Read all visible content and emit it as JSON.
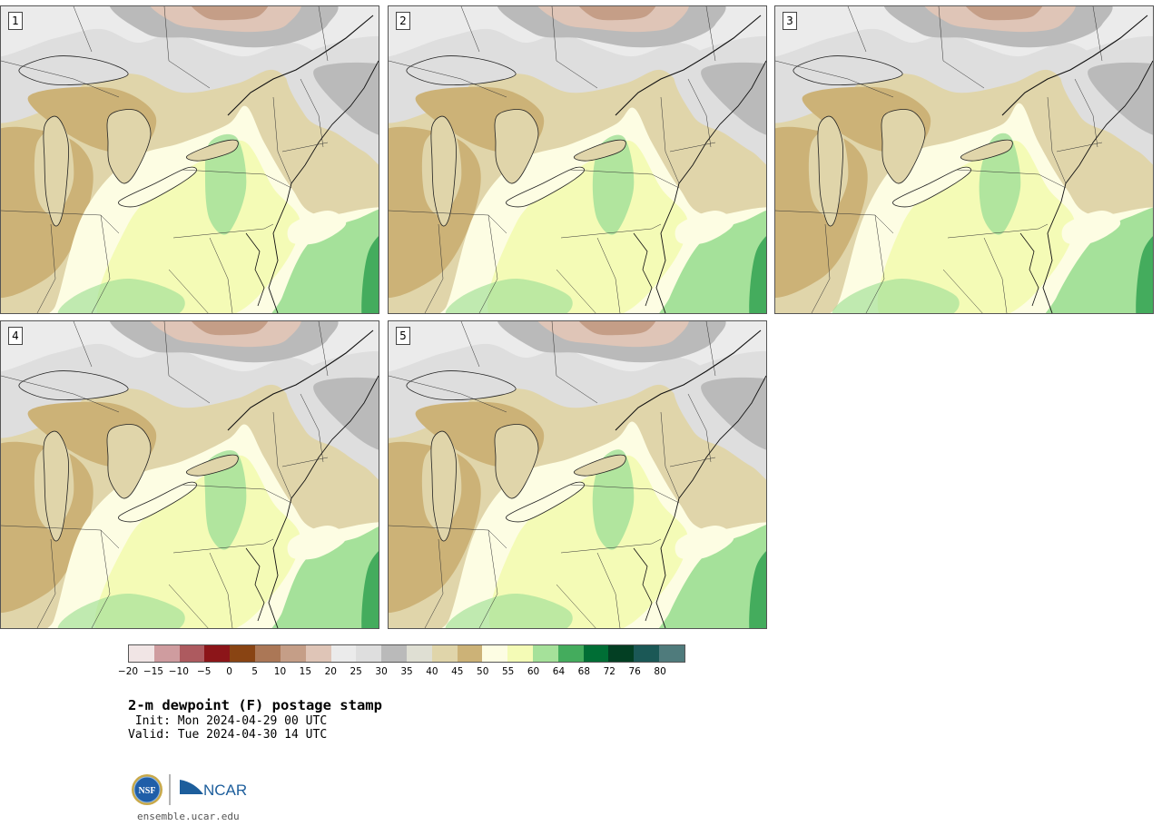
{
  "panels": [
    {
      "label": "1",
      "variant": 0
    },
    {
      "label": "2",
      "variant": 1
    },
    {
      "label": "3",
      "variant": 2
    },
    {
      "label": "4",
      "variant": 3
    },
    {
      "label": "5",
      "variant": 4
    }
  ],
  "colorbar": {
    "colors": [
      "#f1e5e5",
      "#cf9c9f",
      "#ad5a5f",
      "#8c1519",
      "#894413",
      "#ab7756",
      "#c59e87",
      "#dfc5b7",
      "#ebebeb",
      "#dedede",
      "#bababa",
      "#dfdfd3",
      "#e0d5aa",
      "#ccb277",
      "#fdfde3",
      "#f4fbb6",
      "#a5e19a",
      "#44ac5d",
      "#006e35",
      "#033f23",
      "#1b5856",
      "#4f7b7c"
    ],
    "tick_labels": [
      "−20",
      "−15",
      "−10",
      "−5",
      "0",
      "5",
      "10",
      "15",
      "20",
      "25",
      "30",
      "35",
      "40",
      "45",
      "50",
      "55",
      "60",
      "64",
      "68",
      "72",
      "76",
      "80"
    ]
  },
  "title": "2-m dewpoint (F) postage stamp",
  "init": " Init: Mon 2024-04-29 00 UTC",
  "valid": "Valid: Tue 2024-04-30 14 UTC",
  "logos": {
    "nsf": "NSF",
    "ncar": "NCAR"
  },
  "website": "ensemble.ucar.edu"
}
